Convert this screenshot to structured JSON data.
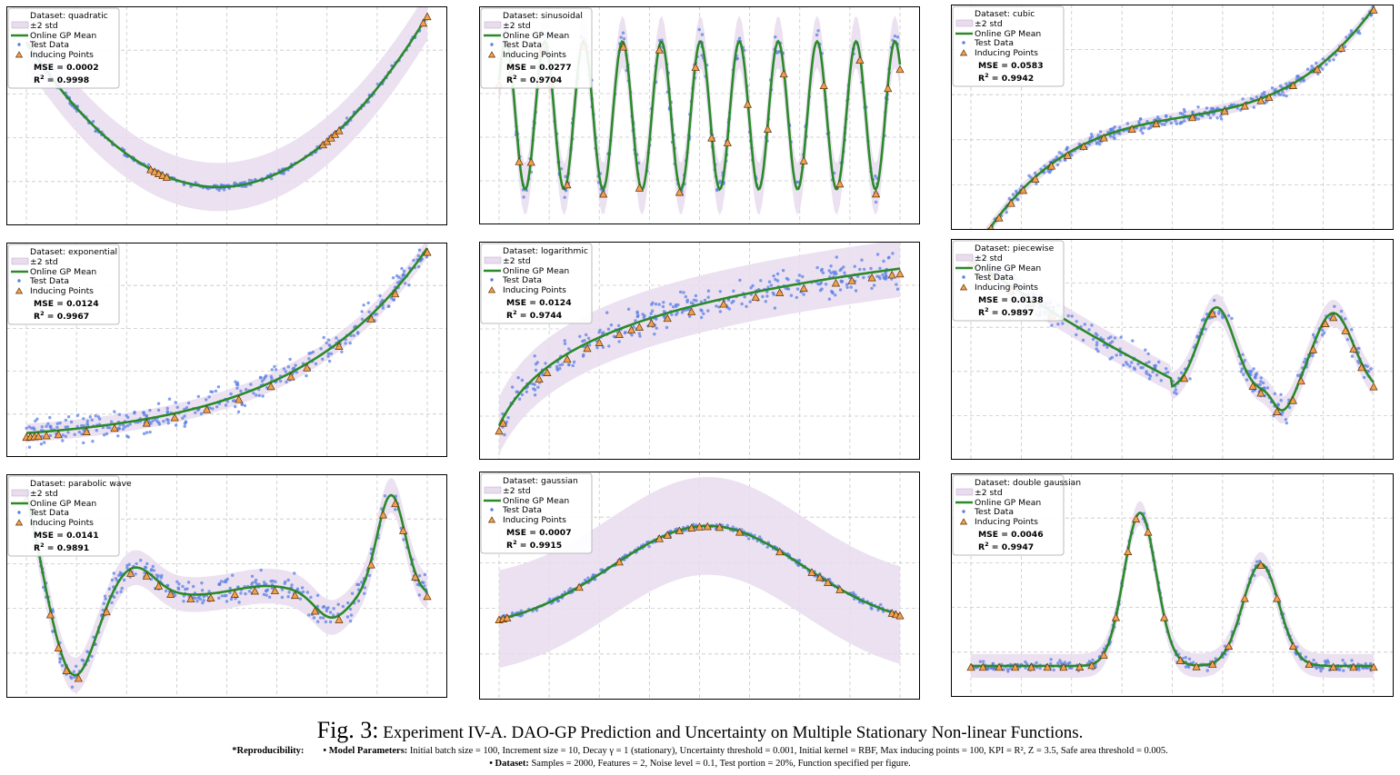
{
  "legend_labels": {
    "std": "±2 std",
    "mean": "Online GP Mean",
    "test": "Test Data",
    "inducing": "Inducing Points",
    "mse_prefix": "MSE = ",
    "r2_prefix": "R",
    "r2_sup": "2",
    "r2_suffix": " = "
  },
  "colors": {
    "band": "#e8dced",
    "mean": "#2a8a2a",
    "test": "#5b7fe6",
    "inducing_fill": "#f0a050",
    "inducing_edge": "#5a3000",
    "grid": "#c8c8c8"
  },
  "chart_data": [
    {
      "type": "line",
      "dataset_label": "Dataset: quadratic",
      "func": "quadratic",
      "mse": "0.0002",
      "r2": "0.9998",
      "band_width": 0.22,
      "noise": 0.02,
      "ylim": [
        -0.3,
        1.6
      ],
      "inducing_x": [
        0.31,
        0.32,
        0.33,
        0.34,
        0.35,
        0.74,
        0.75,
        0.76,
        0.77,
        0.78,
        0.99,
        1.0
      ]
    },
    {
      "type": "line",
      "dataset_label": "Dataset: sinusoidal",
      "func": "sinusoidal",
      "mse": "0.0277",
      "r2": "0.9704",
      "band_width": 0.35,
      "noise": 0.14,
      "ylim": [
        -1.4,
        1.4
      ],
      "inducing_x": [
        0.0,
        0.03,
        0.05,
        0.08,
        0.11,
        0.13,
        0.17,
        0.21,
        0.26,
        0.31,
        0.35,
        0.4,
        0.45,
        0.49,
        0.53,
        0.57,
        0.62,
        0.67,
        0.71,
        0.76,
        0.81,
        0.85,
        0.9,
        0.94,
        0.97,
        1.0
      ]
    },
    {
      "type": "line",
      "dataset_label": "Dataset: cubic",
      "func": "cubic",
      "mse": "0.0583",
      "r2": "0.9942",
      "band_width": 0.06,
      "noise": 0.05,
      "ylim": [
        -1.1,
        1.1
      ],
      "inducing_x": [
        0.0,
        0.02,
        0.05,
        0.07,
        0.1,
        0.13,
        0.16,
        0.2,
        0.24,
        0.28,
        0.33,
        0.4,
        0.46,
        0.55,
        0.63,
        0.68,
        0.72,
        0.74,
        0.8,
        0.86,
        0.92,
        1.0
      ]
    },
    {
      "type": "line",
      "dataset_label": "Dataset: exponential",
      "func": "exponential",
      "mse": "0.0124",
      "r2": "0.9967",
      "band_width": 0.05,
      "noise": 0.05,
      "ylim": [
        -0.1,
        1.0
      ],
      "inducing_x": [
        0.0,
        0.01,
        0.02,
        0.03,
        0.05,
        0.08,
        0.15,
        0.22,
        0.3,
        0.37,
        0.45,
        0.53,
        0.61,
        0.66,
        0.7,
        0.78,
        0.86,
        0.92,
        1.0
      ]
    },
    {
      "type": "line",
      "dataset_label": "Dataset: logarithmic",
      "func": "logarithmic",
      "mse": "0.0124",
      "r2": "0.9744",
      "band_width": 0.2,
      "noise": 0.08,
      "ylim": [
        -0.45,
        1.0
      ],
      "inducing_x": [
        0.0,
        0.01,
        0.1,
        0.12,
        0.17,
        0.22,
        0.25,
        0.3,
        0.33,
        0.35,
        0.38,
        0.42,
        0.48,
        0.56,
        0.64,
        0.7,
        0.76,
        0.84,
        0.88,
        0.93,
        0.98,
        1.0
      ]
    },
    {
      "type": "line",
      "dataset_label": "Dataset: piecewise",
      "func": "piecewise",
      "mse": "0.0138",
      "r2": "0.9897",
      "band_width": 0.07,
      "noise": 0.05,
      "ylim": [
        -0.1,
        1.0
      ],
      "inducing_x": [
        0.0,
        0.05,
        0.1,
        0.15,
        0.2,
        0.53,
        0.6,
        0.7,
        0.72,
        0.76,
        0.8,
        0.82,
        0.85,
        0.88,
        0.9,
        0.93,
        0.95,
        0.97,
        1.0
      ]
    },
    {
      "type": "line",
      "dataset_label": "Dataset: parabolic wave",
      "func": "parabolic_wave",
      "mse": "0.0141",
      "r2": "0.9891",
      "band_width": 0.09,
      "noise": 0.05,
      "ylim": [
        -0.1,
        1.0
      ],
      "inducing_x": [
        0.0,
        0.06,
        0.08,
        0.1,
        0.13,
        0.2,
        0.26,
        0.3,
        0.33,
        0.36,
        0.41,
        0.46,
        0.52,
        0.57,
        0.62,
        0.67,
        0.72,
        0.78,
        0.86,
        0.89,
        0.92,
        0.94,
        0.97,
        1.0
      ]
    },
    {
      "type": "line",
      "dataset_label": "Dataset: gaussian",
      "func": "gaussian",
      "mse": "0.0007",
      "r2": "0.9915",
      "band_width": 0.45,
      "noise": 0.02,
      "ylim": [
        -0.6,
        1.4
      ],
      "inducing_x": [
        0.0,
        0.01,
        0.02,
        0.2,
        0.3,
        0.4,
        0.42,
        0.45,
        0.48,
        0.5,
        0.52,
        0.55,
        0.6,
        0.7,
        0.78,
        0.8,
        0.82,
        0.85,
        0.98,
        0.99,
        1.0
      ]
    },
    {
      "type": "line",
      "dataset_label": "Dataset: double gaussian",
      "func": "double_gaussian",
      "mse": "0.0046",
      "r2": "0.9947",
      "band_width": 0.07,
      "noise": 0.02,
      "ylim": [
        -0.15,
        1.1
      ],
      "inducing_x": [
        0.0,
        0.03,
        0.07,
        0.11,
        0.15,
        0.19,
        0.23,
        0.27,
        0.3,
        0.33,
        0.36,
        0.39,
        0.41,
        0.44,
        0.48,
        0.52,
        0.56,
        0.6,
        0.64,
        0.68,
        0.72,
        0.76,
        0.8,
        0.84,
        0.9,
        0.95,
        1.0
      ]
    }
  ],
  "caption": {
    "fig_label": "Fig. 3:",
    "title": "Experiment  IV-A. DAO-GP Prediction and Uncertainty on Multiple Stationary Non-linear Functions.",
    "repro_label": "*Reproducibility:",
    "model_label": "• Model Parameters:",
    "model_text": "Initial batch size = 100, Increment size = 10, Decay γ = 1 (stationary), Uncertainty threshold = 0.001, Initial kernel = RBF, Max inducing points = 100, KPI = R², Z = 3.5, Safe area threshold = 0.005.",
    "dataset_label": "• Dataset:",
    "dataset_text": "Samples = 2000, Features = 2, Noise level = 0.1, Test portion = 20%, Function specified per figure."
  }
}
